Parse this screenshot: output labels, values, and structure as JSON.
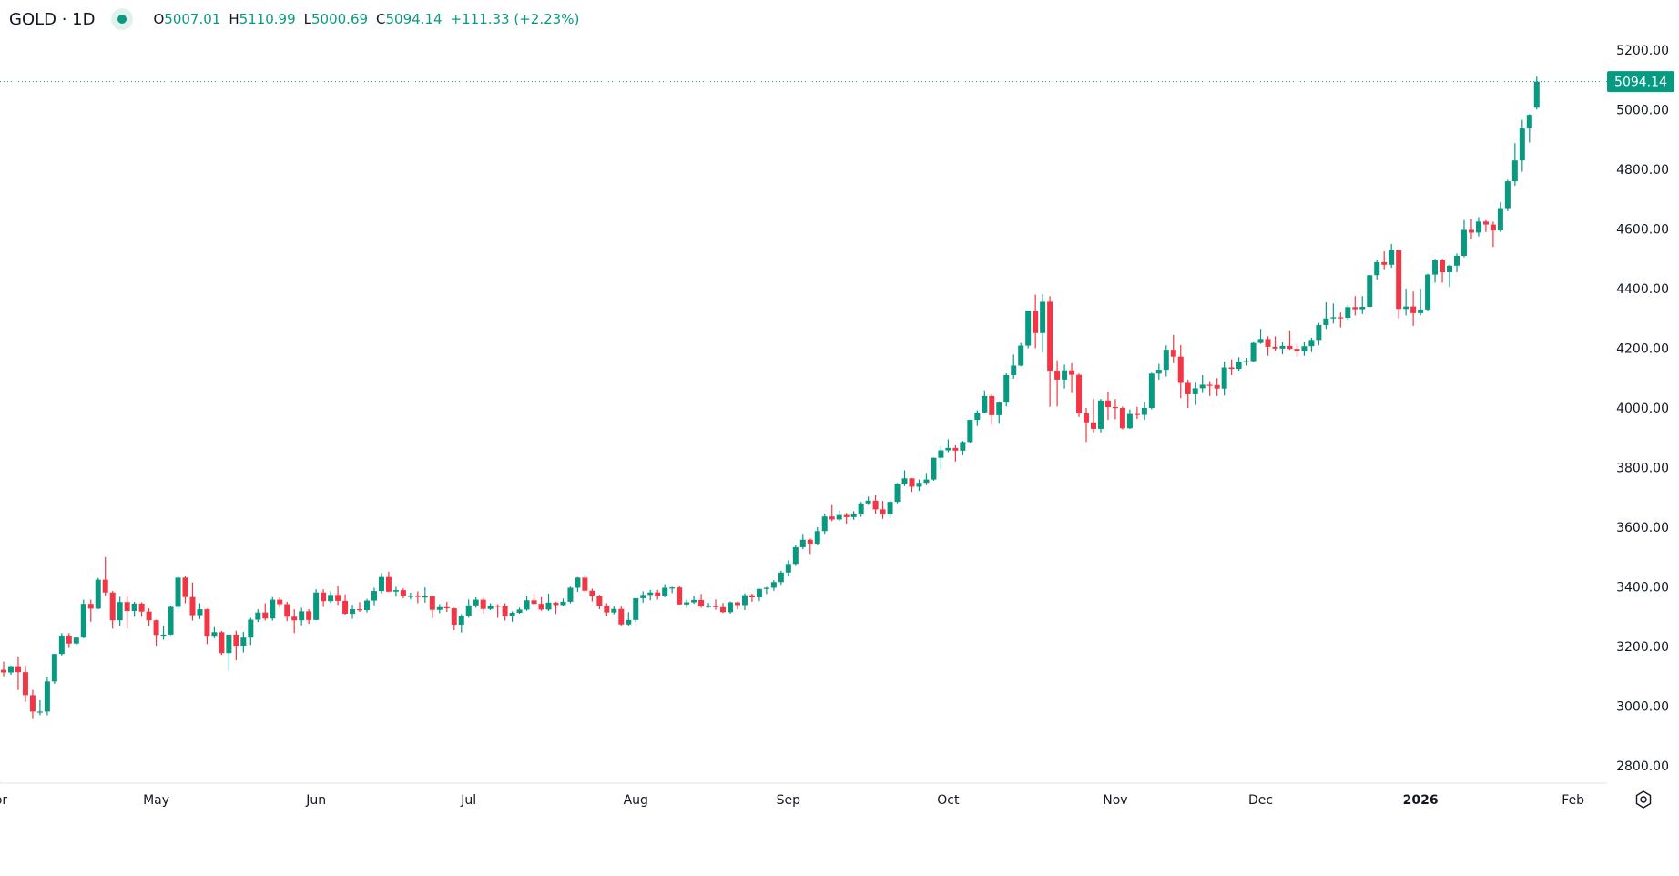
{
  "header": {
    "symbol": "GOLD · 1D",
    "open_key": "O",
    "open": "5007.01",
    "high_key": "H",
    "high": "5110.99",
    "low_key": "L",
    "low": "5000.69",
    "close_key": "C",
    "close": "5094.14",
    "change": "+111.33 (+2.23%)",
    "status_icon": "market-open-dot"
  },
  "colors": {
    "up": "#089981",
    "down": "#F23645",
    "last_price": "#089981"
  },
  "settings_icon": "gear-icon",
  "chart_data": {
    "type": "candlestick",
    "title": "",
    "interval": "1D",
    "ylim": [
      2750,
      5250
    ],
    "y_ticks": [
      "5200.00",
      "5000.00",
      "4800.00",
      "4600.00",
      "4400.00",
      "4200.00",
      "4000.00",
      "3800.00",
      "3600.00",
      "3400.00",
      "3200.00",
      "3000.00",
      "2800.00"
    ],
    "x_ticks": [
      {
        "label": "Apr",
        "index": -1,
        "bold": false
      },
      {
        "label": "May",
        "index": 21,
        "bold": false
      },
      {
        "label": "Jun",
        "index": 43,
        "bold": false
      },
      {
        "label": "Jul",
        "index": 64,
        "bold": false
      },
      {
        "label": "Aug",
        "index": 87,
        "bold": false
      },
      {
        "label": "Sep",
        "index": 108,
        "bold": false
      },
      {
        "label": "Oct",
        "index": 130,
        "bold": false
      },
      {
        "label": "Nov",
        "index": 153,
        "bold": false
      },
      {
        "label": "Dec",
        "index": 173,
        "bold": false
      },
      {
        "label": "2026",
        "index": 195,
        "bold": true
      },
      {
        "label": "Feb",
        "index": 216,
        "bold": false
      }
    ],
    "last_price": "5094.14",
    "ohlc": [
      [
        3122,
        3149,
        3100,
        3113
      ],
      [
        3113,
        3136,
        3105,
        3134
      ],
      [
        3134,
        3167,
        3054,
        3114
      ],
      [
        3114,
        3136,
        3015,
        3037
      ],
      [
        3037,
        3055,
        2957,
        2982
      ],
      [
        2982,
        3020,
        2970,
        2982
      ],
      [
        2982,
        3099,
        2970,
        3083
      ],
      [
        3083,
        3175,
        3075,
        3175
      ],
      [
        3175,
        3245,
        3170,
        3237
      ],
      [
        3237,
        3245,
        3195,
        3210
      ],
      [
        3210,
        3233,
        3205,
        3230
      ],
      [
        3230,
        3357,
        3228,
        3343
      ],
      [
        3343,
        3357,
        3283,
        3327
      ],
      [
        3327,
        3430,
        3325,
        3424
      ],
      [
        3424,
        3500,
        3370,
        3381
      ],
      [
        3381,
        3386,
        3260,
        3288
      ],
      [
        3288,
        3367,
        3270,
        3349
      ],
      [
        3349,
        3371,
        3260,
        3319
      ],
      [
        3319,
        3350,
        3300,
        3344
      ],
      [
        3344,
        3348,
        3300,
        3317
      ],
      [
        3317,
        3328,
        3270,
        3288
      ],
      [
        3288,
        3290,
        3203,
        3239
      ],
      [
        3239,
        3269,
        3223,
        3240
      ],
      [
        3240,
        3337,
        3238,
        3333
      ],
      [
        3333,
        3436,
        3325,
        3431
      ],
      [
        3431,
        3435,
        3345,
        3366
      ],
      [
        3366,
        3415,
        3287,
        3305
      ],
      [
        3305,
        3345,
        3292,
        3325
      ],
      [
        3325,
        3327,
        3208,
        3236
      ],
      [
        3236,
        3265,
        3228,
        3248
      ],
      [
        3248,
        3252,
        3172,
        3178
      ],
      [
        3178,
        3240,
        3120,
        3240
      ],
      [
        3240,
        3253,
        3154,
        3203
      ],
      [
        3203,
        3249,
        3180,
        3230
      ],
      [
        3230,
        3296,
        3205,
        3290
      ],
      [
        3290,
        3325,
        3282,
        3314
      ],
      [
        3314,
        3345,
        3287,
        3294
      ],
      [
        3294,
        3366,
        3287,
        3357
      ],
      [
        3357,
        3365,
        3330,
        3342
      ],
      [
        3342,
        3350,
        3285,
        3300
      ],
      [
        3300,
        3325,
        3245,
        3288
      ],
      [
        3288,
        3330,
        3271,
        3318
      ],
      [
        3318,
        3325,
        3276,
        3289
      ],
      [
        3289,
        3392,
        3289,
        3381
      ],
      [
        3381,
        3392,
        3333,
        3352
      ],
      [
        3352,
        3385,
        3345,
        3373
      ],
      [
        3373,
        3403,
        3339,
        3353
      ],
      [
        3353,
        3375,
        3307,
        3310
      ],
      [
        3310,
        3340,
        3293,
        3325
      ],
      [
        3325,
        3349,
        3316,
        3322
      ],
      [
        3322,
        3360,
        3314,
        3354
      ],
      [
        3354,
        3397,
        3338,
        3386
      ],
      [
        3386,
        3446,
        3378,
        3433
      ],
      [
        3433,
        3451,
        3382,
        3384
      ],
      [
        3384,
        3400,
        3367,
        3389
      ],
      [
        3389,
        3395,
        3362,
        3369
      ],
      [
        3369,
        3380,
        3358,
        3370
      ],
      [
        3370,
        3385,
        3345,
        3368
      ],
      [
        3368,
        3398,
        3347,
        3368
      ],
      [
        3368,
        3370,
        3296,
        3323
      ],
      [
        3323,
        3342,
        3312,
        3332
      ],
      [
        3332,
        3350,
        3316,
        3328
      ],
      [
        3328,
        3330,
        3255,
        3273
      ],
      [
        3273,
        3308,
        3247,
        3303
      ],
      [
        3303,
        3358,
        3297,
        3338
      ],
      [
        3338,
        3365,
        3330,
        3357
      ],
      [
        3357,
        3365,
        3310,
        3326
      ],
      [
        3326,
        3345,
        3322,
        3337
      ],
      [
        3337,
        3342,
        3296,
        3336
      ],
      [
        3336,
        3345,
        3287,
        3301
      ],
      [
        3301,
        3318,
        3283,
        3313
      ],
      [
        3313,
        3330,
        3310,
        3324
      ],
      [
        3324,
        3368,
        3320,
        3355
      ],
      [
        3355,
        3375,
        3340,
        3343
      ],
      [
        3343,
        3366,
        3320,
        3324
      ],
      [
        3324,
        3377,
        3319,
        3347
      ],
      [
        3347,
        3350,
        3309,
        3339
      ],
      [
        3339,
        3361,
        3335,
        3350
      ],
      [
        3350,
        3401,
        3345,
        3397
      ],
      [
        3397,
        3433,
        3383,
        3431
      ],
      [
        3431,
        3439,
        3381,
        3387
      ],
      [
        3387,
        3394,
        3351,
        3368
      ],
      [
        3368,
        3373,
        3325,
        3337
      ],
      [
        3337,
        3345,
        3301,
        3314
      ],
      [
        3314,
        3334,
        3308,
        3326
      ],
      [
        3326,
        3334,
        3268,
        3274
      ],
      [
        3274,
        3315,
        3268,
        3289
      ],
      [
        3289,
        3363,
        3281,
        3362
      ],
      [
        3362,
        3385,
        3347,
        3373
      ],
      [
        3373,
        3390,
        3355,
        3381
      ],
      [
        3381,
        3390,
        3357,
        3368
      ],
      [
        3368,
        3409,
        3365,
        3397
      ],
      [
        3397,
        3400,
        3379,
        3398
      ],
      [
        3398,
        3404,
        3341,
        3341
      ],
      [
        3341,
        3358,
        3330,
        3348
      ],
      [
        3348,
        3370,
        3343,
        3356
      ],
      [
        3356,
        3376,
        3330,
        3335
      ],
      [
        3335,
        3346,
        3330,
        3336
      ],
      [
        3336,
        3358,
        3323,
        3332
      ],
      [
        3332,
        3346,
        3312,
        3315
      ],
      [
        3315,
        3351,
        3310,
        3348
      ],
      [
        3348,
        3350,
        3325,
        3339
      ],
      [
        3339,
        3378,
        3322,
        3372
      ],
      [
        3372,
        3377,
        3350,
        3365
      ],
      [
        3365,
        3394,
        3352,
        3393
      ],
      [
        3393,
        3400,
        3376,
        3397
      ],
      [
        3397,
        3423,
        3387,
        3416
      ],
      [
        3416,
        3454,
        3407,
        3448
      ],
      [
        3448,
        3489,
        3436,
        3477
      ],
      [
        3477,
        3540,
        3470,
        3533
      ],
      [
        3533,
        3578,
        3526,
        3558
      ],
      [
        3558,
        3562,
        3510,
        3545
      ],
      [
        3545,
        3600,
        3542,
        3587
      ],
      [
        3587,
        3646,
        3578,
        3636
      ],
      [
        3636,
        3674,
        3620,
        3626
      ],
      [
        3626,
        3656,
        3620,
        3641
      ],
      [
        3641,
        3648,
        3612,
        3634
      ],
      [
        3634,
        3654,
        3625,
        3643
      ],
      [
        3643,
        3685,
        3635,
        3680
      ],
      [
        3680,
        3703,
        3675,
        3689
      ],
      [
        3689,
        3707,
        3645,
        3660
      ],
      [
        3660,
        3688,
        3628,
        3644
      ],
      [
        3644,
        3690,
        3631,
        3685
      ],
      [
        3685,
        3749,
        3680,
        3746
      ],
      [
        3746,
        3791,
        3738,
        3764
      ],
      [
        3764,
        3765,
        3718,
        3736
      ],
      [
        3736,
        3760,
        3722,
        3749
      ],
      [
        3749,
        3782,
        3741,
        3760
      ],
      [
        3760,
        3834,
        3756,
        3833
      ],
      [
        3833,
        3872,
        3793,
        3858
      ],
      [
        3858,
        3895,
        3852,
        3866
      ],
      [
        3866,
        3875,
        3820,
        3857
      ],
      [
        3857,
        3890,
        3841,
        3886
      ],
      [
        3886,
        3961,
        3883,
        3960
      ],
      [
        3960,
        3992,
        3940,
        3985
      ],
      [
        3985,
        4059,
        3983,
        4040
      ],
      [
        4040,
        4046,
        3944,
        3976
      ],
      [
        3976,
        4022,
        3947,
        4018
      ],
      [
        4018,
        4116,
        4005,
        4110
      ],
      [
        4110,
        4179,
        4098,
        4142
      ],
      [
        4142,
        4218,
        4140,
        4209
      ],
      [
        4209,
        4326,
        4200,
        4326
      ],
      [
        4326,
        4380,
        4200,
        4251
      ],
      [
        4251,
        4381,
        4185,
        4356
      ],
      [
        4356,
        4375,
        4004,
        4125
      ],
      [
        4125,
        4160,
        4005,
        4095
      ],
      [
        4095,
        4145,
        4065,
        4126
      ],
      [
        4126,
        4150,
        4050,
        4111
      ],
      [
        4111,
        4115,
        3970,
        3982
      ],
      [
        3982,
        4000,
        3886,
        3952
      ],
      [
        3952,
        4030,
        3918,
        3930
      ],
      [
        3930,
        4030,
        3918,
        4025
      ],
      [
        4025,
        4055,
        3960,
        4003
      ],
      [
        4003,
        4030,
        3962,
        4000
      ],
      [
        4000,
        4005,
        3928,
        3932
      ],
      [
        3932,
        3995,
        3930,
        3980
      ],
      [
        3980,
        4004,
        3963,
        3977
      ],
      [
        3977,
        4020,
        3960,
        4000
      ],
      [
        4000,
        4118,
        3995,
        4115
      ],
      [
        4115,
        4148,
        4095,
        4128
      ],
      [
        4128,
        4210,
        4105,
        4195
      ],
      [
        4195,
        4245,
        4150,
        4172
      ],
      [
        4172,
        4211,
        4033,
        4084
      ],
      [
        4084,
        4095,
        4000,
        4046
      ],
      [
        4046,
        4085,
        4010,
        4066
      ],
      [
        4066,
        4110,
        4050,
        4078
      ],
      [
        4078,
        4090,
        4040,
        4077
      ],
      [
        4077,
        4100,
        4040,
        4065
      ],
      [
        4065,
        4156,
        4042,
        4136
      ],
      [
        4136,
        4163,
        4110,
        4131
      ],
      [
        4131,
        4170,
        4125,
        4155
      ],
      [
        4155,
        4168,
        4142,
        4157
      ],
      [
        4157,
        4220,
        4155,
        4218
      ],
      [
        4218,
        4265,
        4215,
        4231
      ],
      [
        4231,
        4240,
        4175,
        4205
      ],
      [
        4205,
        4240,
        4192,
        4199
      ],
      [
        4199,
        4220,
        4180,
        4208
      ],
      [
        4208,
        4260,
        4195,
        4198
      ],
      [
        4198,
        4215,
        4171,
        4190
      ],
      [
        4190,
        4220,
        4175,
        4207
      ],
      [
        4207,
        4235,
        4187,
        4228
      ],
      [
        4228,
        4285,
        4210,
        4278
      ],
      [
        4278,
        4354,
        4265,
        4300
      ],
      [
        4300,
        4350,
        4283,
        4304
      ],
      [
        4304,
        4320,
        4270,
        4302
      ],
      [
        4302,
        4345,
        4295,
        4338
      ],
      [
        4338,
        4375,
        4310,
        4331
      ],
      [
        4331,
        4375,
        4315,
        4339
      ],
      [
        4339,
        4446,
        4338,
        4445
      ],
      [
        4445,
        4497,
        4430,
        4489
      ],
      [
        4489,
        4525,
        4465,
        4480
      ],
      [
        4480,
        4550,
        4470,
        4530
      ],
      [
        4530,
        4530,
        4300,
        4332
      ],
      [
        4332,
        4400,
        4310,
        4340
      ],
      [
        4340,
        4390,
        4275,
        4318
      ],
      [
        4318,
        4400,
        4310,
        4330
      ],
      [
        4330,
        4450,
        4325,
        4447
      ],
      [
        4447,
        4500,
        4420,
        4495
      ],
      [
        4495,
        4500,
        4420,
        4455
      ],
      [
        4455,
        4480,
        4405,
        4477
      ],
      [
        4477,
        4518,
        4455,
        4510
      ],
      [
        4510,
        4630,
        4505,
        4597
      ],
      [
        4597,
        4635,
        4565,
        4588
      ],
      [
        4588,
        4640,
        4575,
        4625
      ],
      [
        4625,
        4630,
        4590,
        4615
      ],
      [
        4615,
        4625,
        4540,
        4595
      ],
      [
        4595,
        4690,
        4590,
        4670
      ],
      [
        4670,
        4765,
        4660,
        4760
      ],
      [
        4760,
        4888,
        4745,
        4830
      ],
      [
        4830,
        4966,
        4792,
        4937
      ],
      [
        4937,
        4985,
        4890,
        4982.81
      ],
      [
        5007.01,
        5110.99,
        5000.69,
        5094.14
      ]
    ]
  }
}
